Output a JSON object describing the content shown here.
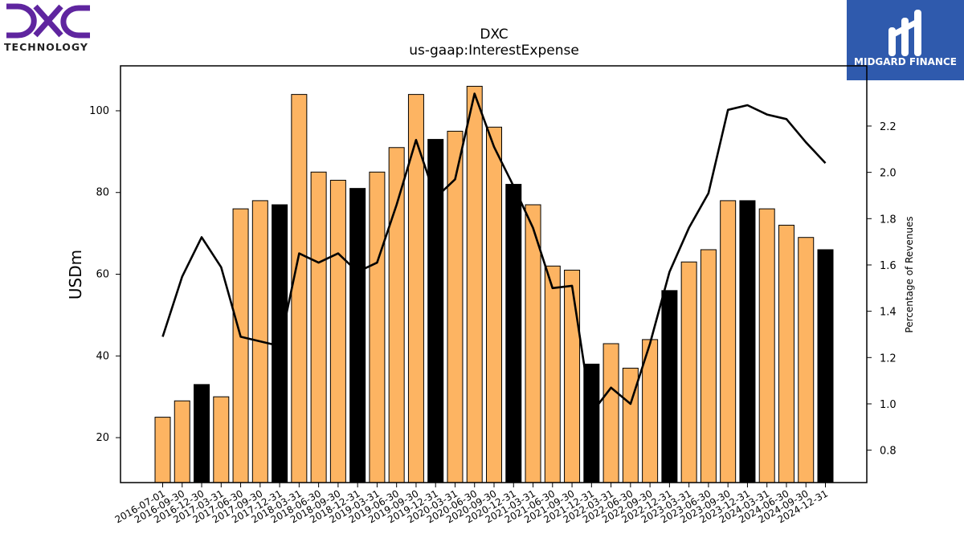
{
  "logos": {
    "left": {
      "text": "TECHNOLOGY",
      "name": "DXC",
      "color": "#5f259f"
    },
    "right": {
      "text": "MIDGARD FINANCE",
      "color": "#2f5aad"
    }
  },
  "chart_data": {
    "type": "bar",
    "title": "DXC",
    "subtitle": "us-gaap:InterestExpense",
    "ylabel": "USDm",
    "y2label": "Percentage of Revenues",
    "ylim": [
      9,
      111
    ],
    "y2lim": [
      0.66,
      2.46
    ],
    "yticks": [
      20,
      40,
      60,
      80,
      100
    ],
    "y2ticks": [
      0.8,
      1.0,
      1.2,
      1.4,
      1.6,
      1.8,
      2.0,
      2.2
    ],
    "bar_color": "#fdb462",
    "highlight_color": "#000000",
    "categories": [
      "2016-07-01",
      "2016-09-30",
      "2016-12-30",
      "2017-03-31",
      "2017-06-30",
      "2017-09-30",
      "2017-12-31",
      "2018-03-31",
      "2018-06-30",
      "2018-09-30",
      "2018-12-31",
      "2019-03-31",
      "2019-06-30",
      "2019-09-30",
      "2019-12-31",
      "2020-03-31",
      "2020-06-30",
      "2020-09-30",
      "2020-12-31",
      "2021-03-31",
      "2021-06-30",
      "2021-09-30",
      "2021-12-31",
      "2022-03-31",
      "2022-06-30",
      "2022-09-30",
      "2022-12-31",
      "2023-03-31",
      "2023-06-30",
      "2023-09-30",
      "2023-12-31",
      "2024-03-31",
      "2024-06-30",
      "2024-09-30",
      "2024-12-31"
    ],
    "series": [
      {
        "type": "bar",
        "values": [
          25,
          29,
          33,
          30,
          76,
          78,
          77,
          104,
          85,
          83,
          81,
          85,
          91,
          104,
          93,
          95,
          106,
          96,
          82,
          77,
          62,
          61,
          38,
          43,
          37,
          44,
          56,
          63,
          66,
          78,
          78,
          76,
          72,
          69,
          66
        ],
        "highlighted": [
          false,
          false,
          true,
          false,
          false,
          false,
          true,
          false,
          false,
          false,
          true,
          false,
          false,
          false,
          true,
          false,
          false,
          false,
          true,
          false,
          false,
          false,
          true,
          false,
          false,
          false,
          true,
          false,
          false,
          false,
          true,
          false,
          false,
          false,
          true
        ]
      },
      {
        "type": "line",
        "axis": "right",
        "color": "#000000",
        "values": [
          1.29,
          1.55,
          1.72,
          1.59,
          1.29,
          1.27,
          1.25,
          1.65,
          1.61,
          1.65,
          1.57,
          1.61,
          1.86,
          2.14,
          1.89,
          1.97,
          2.34,
          2.11,
          1.94,
          1.76,
          1.5,
          1.51,
          0.96,
          1.07,
          1.0,
          1.26,
          1.57,
          1.76,
          1.91,
          2.27,
          2.29,
          2.25,
          2.23,
          2.13,
          2.04
        ]
      }
    ]
  }
}
